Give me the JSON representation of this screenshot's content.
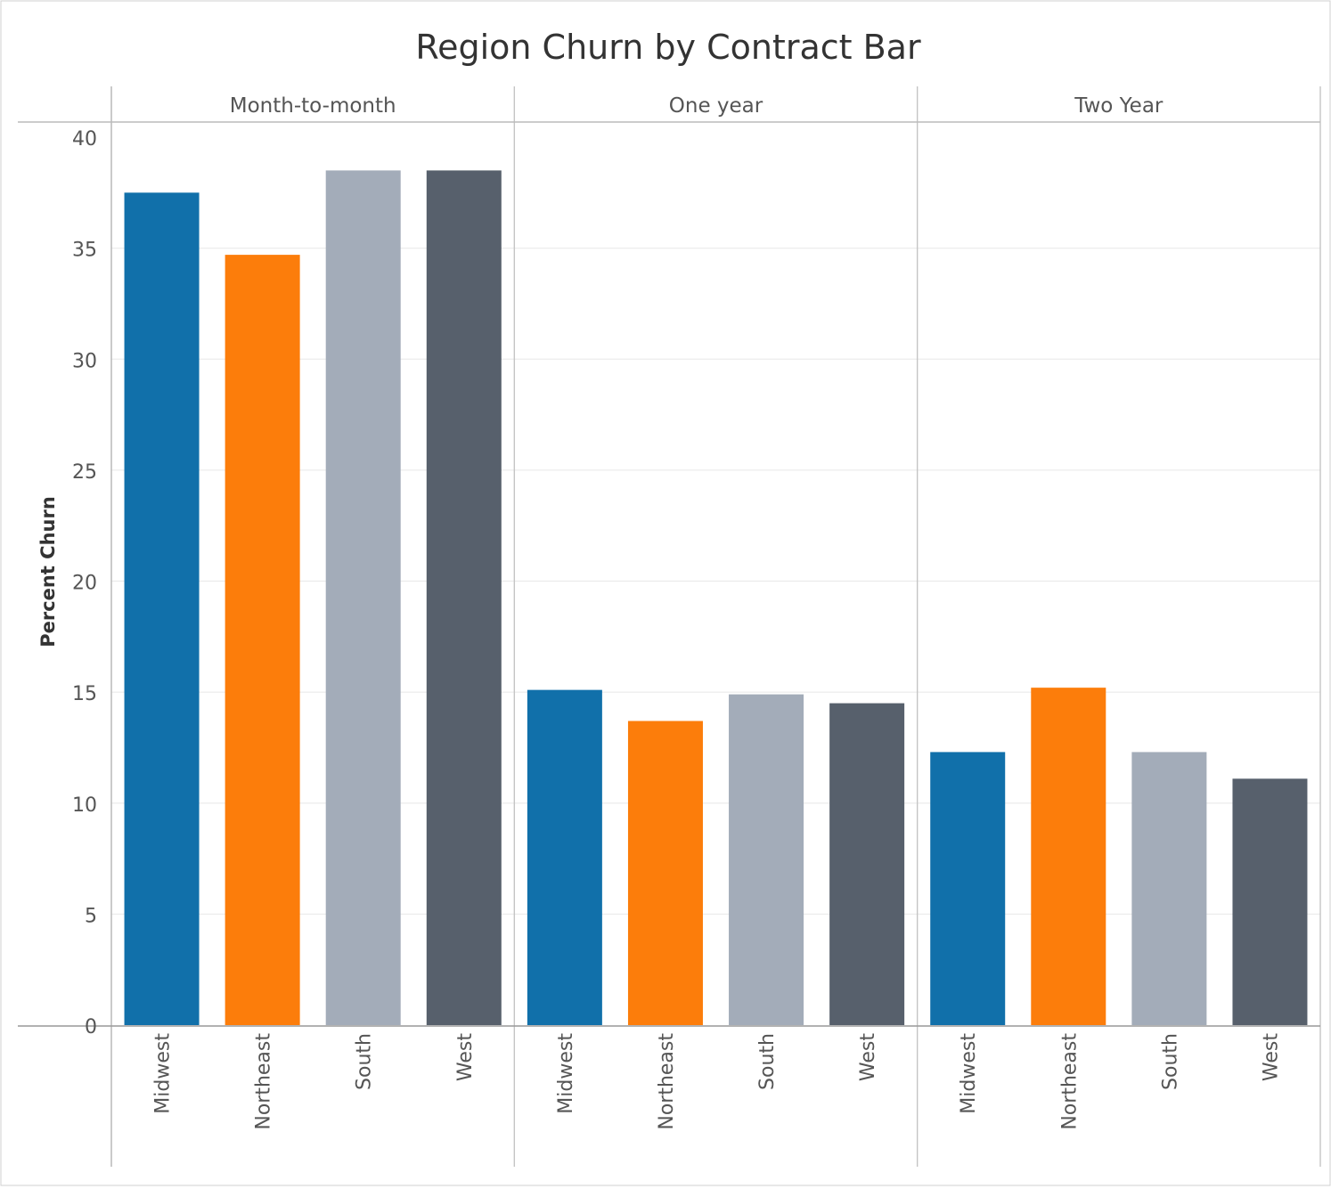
{
  "chart_data": {
    "type": "bar",
    "title": "Region Churn by Contract Bar",
    "xlabel": "",
    "ylabel": "Percent Churn",
    "ylim": [
      0,
      40
    ],
    "yticks": [
      0,
      5,
      10,
      15,
      20,
      25,
      30,
      35,
      40
    ],
    "grid": true,
    "legend": "none",
    "panels": [
      {
        "label": "Month-to-month",
        "categories": [
          "Midwest",
          "Northeast",
          "South",
          "West"
        ],
        "values": [
          37.5,
          34.7,
          38.5,
          38.5
        ]
      },
      {
        "label": "One year",
        "categories": [
          "Midwest",
          "Northeast",
          "South",
          "West"
        ],
        "values": [
          15.1,
          13.7,
          14.9,
          14.5
        ]
      },
      {
        "label": "Two Year",
        "categories": [
          "Midwest",
          "Northeast",
          "South",
          "West"
        ],
        "values": [
          12.3,
          15.2,
          12.3,
          11.1
        ]
      }
    ],
    "category_colors": {
      "Midwest": "#1170aa",
      "Northeast": "#fc7d0b",
      "South": "#a3acb9",
      "West": "#57606c"
    }
  }
}
